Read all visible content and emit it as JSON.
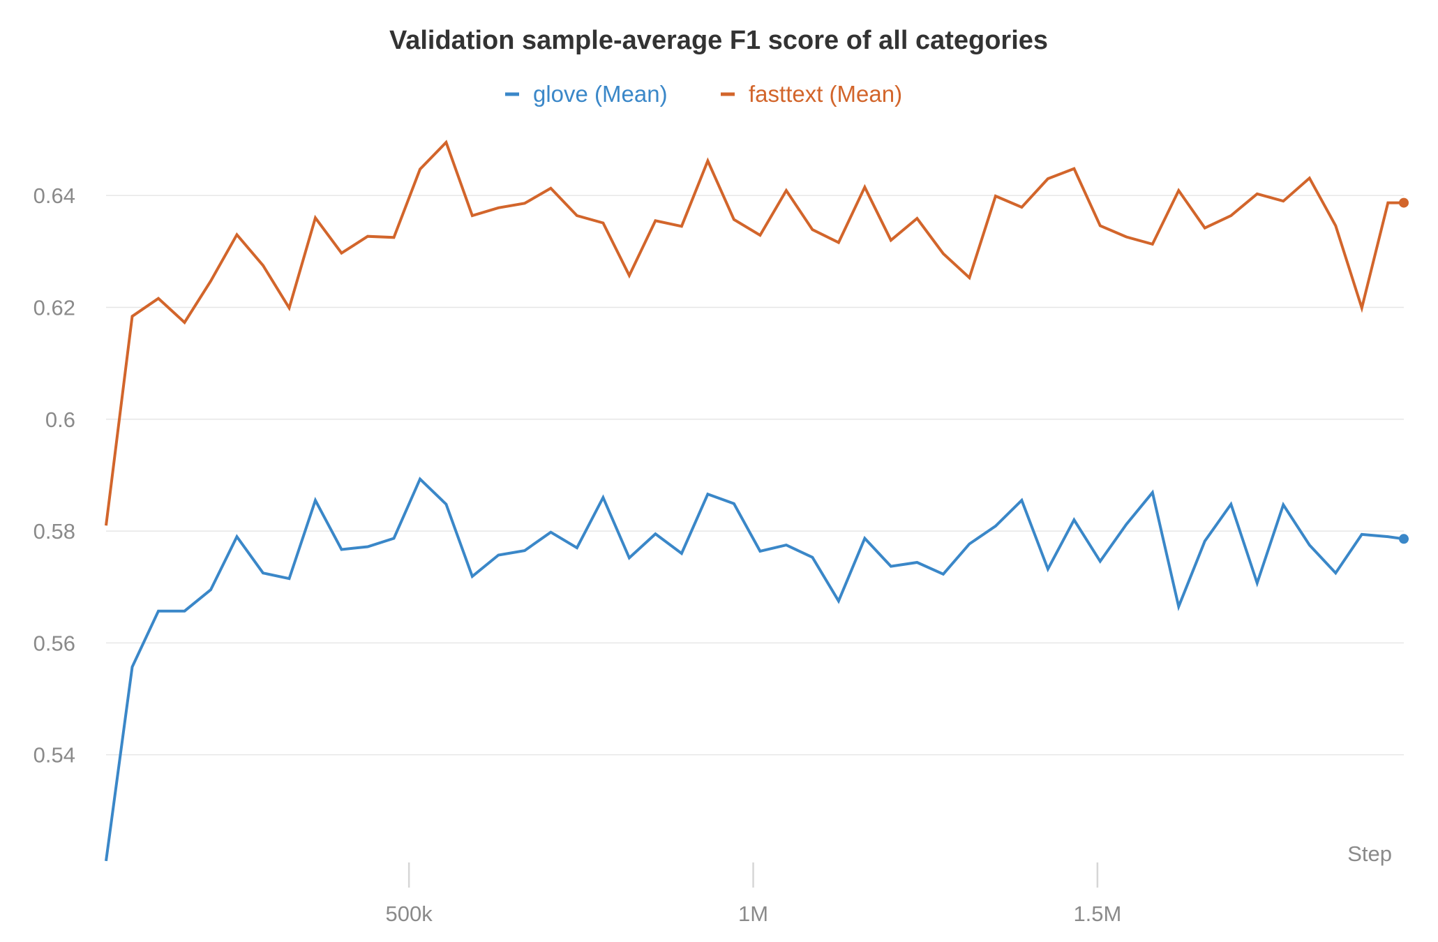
{
  "chart_data": {
    "type": "line",
    "title": "Validation sample-average F1 score of all categories",
    "xlabel": "Step",
    "ylabel": "",
    "x_tick_labels": [
      "500k",
      "1M",
      "1.5M"
    ],
    "x_tick_values": [
      500000,
      1000000,
      1500000
    ],
    "y_tick_labels": [
      "0.54",
      "0.56",
      "0.58",
      "0.6",
      "0.62",
      "0.64"
    ],
    "y_tick_values": [
      0.54,
      0.56,
      0.58,
      0.6,
      0.62,
      0.64
    ],
    "ylim": [
      0.5175,
      0.6525
    ],
    "xlim": [
      60000,
      1945000
    ],
    "grid": true,
    "legend_position": "top-center",
    "x": [
      60000,
      98000,
      136000,
      174000,
      212000,
      250000,
      288000,
      326000,
      364000,
      402000,
      440000,
      478000,
      516000,
      554000,
      592000,
      630000,
      668000,
      706000,
      744000,
      782000,
      820000,
      858000,
      896000,
      934000,
      972000,
      1010000,
      1048000,
      1086000,
      1124000,
      1162000,
      1200000,
      1238000,
      1276000,
      1314000,
      1352000,
      1390000,
      1428000,
      1466000,
      1504000,
      1542000,
      1580000,
      1618000,
      1656000,
      1694000,
      1732000,
      1770000,
      1808000,
      1846000,
      1884000,
      1922000,
      1945000
    ],
    "series": [
      {
        "name": "glove (Mean)",
        "color": "#3a87c8",
        "values": [
          0.521,
          0.5557,
          0.5657,
          0.5657,
          0.5695,
          0.579,
          0.5725,
          0.5715,
          0.5855,
          0.5767,
          0.5772,
          0.5787,
          0.5893,
          0.5848,
          0.5719,
          0.5757,
          0.5765,
          0.5798,
          0.577,
          0.586,
          0.5752,
          0.5795,
          0.576,
          0.5866,
          0.5849,
          0.5764,
          0.5775,
          0.5753,
          0.5675,
          0.5787,
          0.5737,
          0.5744,
          0.5723,
          0.5777,
          0.5809,
          0.5855,
          0.5732,
          0.582,
          0.5746,
          0.5812,
          0.5869,
          0.5665,
          0.5782,
          0.5848,
          0.5707,
          0.5847,
          0.5775,
          0.5725,
          0.5794,
          0.579,
          0.5786
        ]
      },
      {
        "name": "fasttext (Mean)",
        "color": "#d2652b",
        "values": [
          0.581,
          0.6184,
          0.6216,
          0.6173,
          0.6247,
          0.633,
          0.6275,
          0.6199,
          0.636,
          0.6297,
          0.6327,
          0.6325,
          0.6447,
          0.6495,
          0.6364,
          0.6378,
          0.6386,
          0.6413,
          0.6364,
          0.6351,
          0.6257,
          0.6355,
          0.6345,
          0.6462,
          0.6357,
          0.6329,
          0.6409,
          0.6339,
          0.6316,
          0.6415,
          0.632,
          0.6359,
          0.6296,
          0.6253,
          0.6399,
          0.6379,
          0.643,
          0.6448,
          0.6346,
          0.6326,
          0.6313,
          0.6409,
          0.6342,
          0.6364,
          0.6403,
          0.639,
          0.6431,
          0.6346,
          0.6199,
          0.6387,
          0.6387
        ]
      }
    ]
  }
}
